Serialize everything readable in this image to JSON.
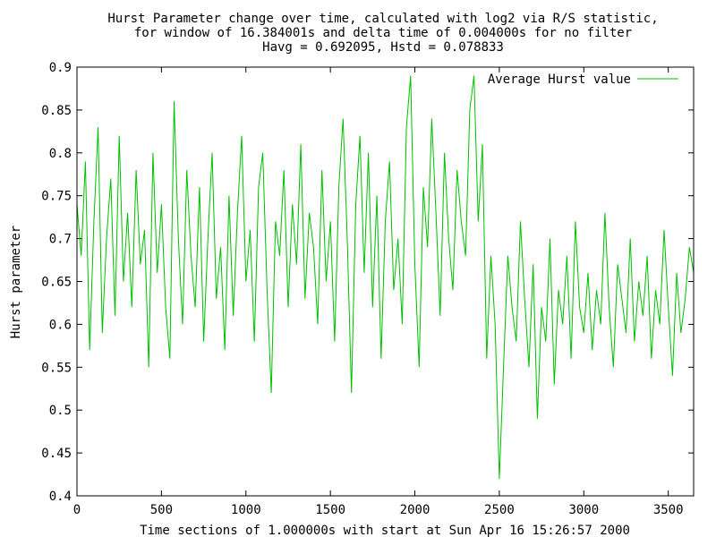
{
  "chart_data": {
    "type": "line",
    "title_lines": [
      "Hurst Parameter change over time, calculated with log2 via R/S statistic,",
      "for window of 16.384001s and delta time of 0.004000s for no filter",
      "Havg = 0.692095, Hstd = 0.078833"
    ],
    "xlabel": "Time sections of 1.000000s with start at Sun Apr 16 15:26:57 2000",
    "ylabel": "Hurst parameter",
    "xlim": [
      0,
      3650
    ],
    "ylim": [
      0.4,
      0.9
    ],
    "x_ticks": [
      0,
      500,
      1000,
      1500,
      2000,
      2500,
      3000,
      3500
    ],
    "y_ticks": [
      0.4,
      0.45,
      0.5,
      0.55,
      0.6,
      0.65,
      0.7,
      0.75,
      0.8,
      0.85,
      0.9
    ],
    "y_tick_labels": [
      "0.4",
      "0.45",
      "0.5",
      "0.55",
      "0.6",
      "0.65",
      "0.7",
      "0.75",
      "0.8",
      "0.85",
      "0.9"
    ],
    "legend_position": "top-right",
    "series": [
      {
        "name": "Average Hurst value",
        "color": "#00c000",
        "sample_interval": 25,
        "x": [
          0,
          25,
          50,
          75,
          100,
          125,
          150,
          175,
          200,
          225,
          250,
          275,
          300,
          325,
          350,
          375,
          400,
          425,
          450,
          475,
          500,
          525,
          550,
          575,
          600,
          625,
          650,
          675,
          700,
          725,
          750,
          775,
          800,
          825,
          850,
          875,
          900,
          925,
          950,
          975,
          1000,
          1025,
          1050,
          1075,
          1100,
          1125,
          1150,
          1175,
          1200,
          1225,
          1250,
          1275,
          1300,
          1325,
          1350,
          1375,
          1400,
          1425,
          1450,
          1475,
          1500,
          1525,
          1550,
          1575,
          1600,
          1625,
          1650,
          1675,
          1700,
          1725,
          1750,
          1775,
          1800,
          1825,
          1850,
          1875,
          1900,
          1925,
          1950,
          1975,
          2000,
          2025,
          2050,
          2075,
          2100,
          2125,
          2150,
          2175,
          2200,
          2225,
          2250,
          2275,
          2300,
          2325,
          2350,
          2375,
          2400,
          2425,
          2450,
          2475,
          2500,
          2525,
          2550,
          2575,
          2600,
          2625,
          2650,
          2675,
          2700,
          2725,
          2750,
          2775,
          2800,
          2825,
          2850,
          2875,
          2900,
          2925,
          2950,
          2975,
          3000,
          3025,
          3050,
          3075,
          3100,
          3125,
          3150,
          3175,
          3200,
          3225,
          3250,
          3275,
          3300,
          3325,
          3350,
          3375,
          3400,
          3425,
          3450,
          3475,
          3500,
          3525,
          3550,
          3575,
          3600,
          3625,
          3650
        ],
        "y": [
          0.74,
          0.68,
          0.79,
          0.57,
          0.72,
          0.83,
          0.59,
          0.7,
          0.77,
          0.61,
          0.82,
          0.65,
          0.73,
          0.62,
          0.78,
          0.67,
          0.71,
          0.55,
          0.8,
          0.66,
          0.74,
          0.62,
          0.56,
          0.86,
          0.7,
          0.6,
          0.78,
          0.68,
          0.62,
          0.76,
          0.58,
          0.7,
          0.8,
          0.63,
          0.69,
          0.57,
          0.75,
          0.61,
          0.73,
          0.82,
          0.65,
          0.71,
          0.58,
          0.76,
          0.8,
          0.64,
          0.52,
          0.72,
          0.68,
          0.78,
          0.62,
          0.74,
          0.67,
          0.81,
          0.63,
          0.73,
          0.69,
          0.6,
          0.78,
          0.65,
          0.72,
          0.58,
          0.76,
          0.84,
          0.7,
          0.52,
          0.74,
          0.82,
          0.66,
          0.8,
          0.62,
          0.75,
          0.56,
          0.72,
          0.79,
          0.64,
          0.7,
          0.6,
          0.83,
          0.89,
          0.67,
          0.55,
          0.76,
          0.69,
          0.84,
          0.73,
          0.61,
          0.8,
          0.7,
          0.64,
          0.78,
          0.72,
          0.68,
          0.85,
          0.89,
          0.72,
          0.81,
          0.56,
          0.68,
          0.6,
          0.42,
          0.55,
          0.68,
          0.62,
          0.58,
          0.72,
          0.63,
          0.55,
          0.67,
          0.49,
          0.62,
          0.58,
          0.7,
          0.53,
          0.64,
          0.6,
          0.68,
          0.56,
          0.72,
          0.62,
          0.59,
          0.66,
          0.57,
          0.64,
          0.6,
          0.73,
          0.62,
          0.55,
          0.67,
          0.63,
          0.59,
          0.7,
          0.58,
          0.65,
          0.61,
          0.68,
          0.56,
          0.64,
          0.6,
          0.71,
          0.62,
          0.54,
          0.66,
          0.59,
          0.63,
          0.69,
          0.66
        ]
      }
    ]
  }
}
